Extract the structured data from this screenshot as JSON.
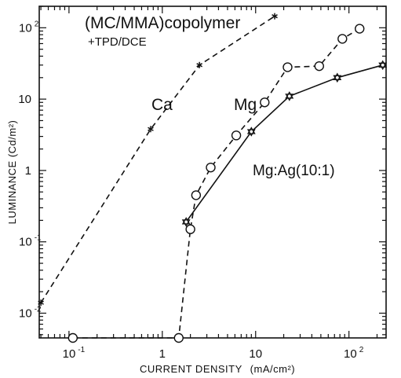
{
  "chart_data": {
    "type": "line",
    "title": "(MC/MMA)copolymer",
    "subtitle": "+TPD/DCE",
    "xlabel": "CURRENT DENSITY",
    "xlabel_units": "(mA/cm²)",
    "ylabel": "LUMINANCE (Cd/m²)",
    "xscale": "log",
    "yscale": "log",
    "xlim": [
      0.048,
      250
    ],
    "ylim": [
      0.0045,
      200
    ],
    "grid": false,
    "legend": "none",
    "x_ticks": [
      {
        "value": 0.1,
        "base": "10",
        "exp": "-1"
      },
      {
        "value": 1,
        "base": "1",
        "exp": ""
      },
      {
        "value": 10,
        "base": "10",
        "exp": ""
      },
      {
        "value": 100,
        "base": "10",
        "exp": "2"
      }
    ],
    "y_ticks": [
      {
        "value": 0.01,
        "base": "10",
        "exp": "-2"
      },
      {
        "value": 0.1,
        "base": "10",
        "exp": "-1"
      },
      {
        "value": 1,
        "base": "1",
        "exp": ""
      },
      {
        "value": 10,
        "base": "10",
        "exp": ""
      },
      {
        "value": 100,
        "base": "10",
        "exp": "2"
      }
    ],
    "series": [
      {
        "name": "Ca",
        "marker": "asterisk",
        "line": "dashed",
        "x": [
          0.05,
          0.75,
          2.5,
          16
        ],
        "y": [
          0.014,
          3.8,
          30,
          145
        ]
      },
      {
        "name": "Mg",
        "marker": "circle",
        "line": "dashed",
        "x": [
          0.11,
          1.5,
          2.0,
          2.3,
          3.3,
          6.2,
          12.5,
          22,
          48,
          85,
          130
        ],
        "y": [
          0.0045,
          0.0045,
          0.15,
          0.45,
          1.1,
          3.1,
          9,
          28,
          29,
          70,
          97
        ]
      },
      {
        "name": "Mg:Ag(10:1)",
        "marker": "star",
        "line": "solid",
        "x": [
          1.8,
          9,
          23,
          75,
          230
        ],
        "y": [
          0.19,
          3.5,
          11,
          20,
          30
        ]
      }
    ]
  }
}
